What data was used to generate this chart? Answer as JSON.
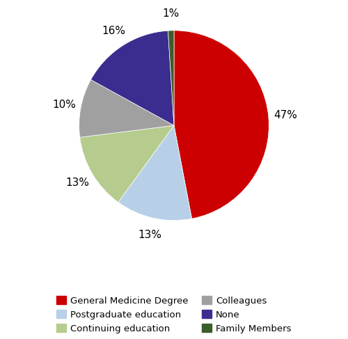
{
  "labels": [
    "General Medicine Degree",
    "Postgraduate education",
    "Continuing education",
    "Colleagues",
    "None",
    "Family Members"
  ],
  "values": [
    47,
    13,
    13,
    10,
    16,
    1
  ],
  "colors": [
    "#cc0000",
    "#b8cfe8",
    "#b5cc8e",
    "#a0a0a0",
    "#3b2d8f",
    "#3a5e2a"
  ],
  "pct_labels": [
    "47%",
    "13%",
    "13%",
    "10%",
    "16%",
    "1%"
  ],
  "startangle": 90,
  "legend_order": [
    0,
    1,
    2,
    3,
    4,
    5
  ],
  "legend_labels": [
    "General Medicine Degree",
    "Postgraduate education",
    "Continuing education",
    "Colleagues",
    "None",
    "Family Members"
  ],
  "figsize": [
    5.0,
    4.87
  ],
  "dpi": 100
}
